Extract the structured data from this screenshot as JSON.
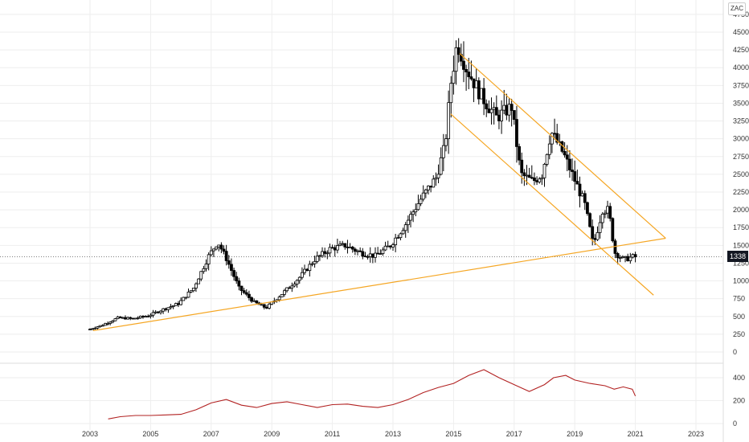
{
  "ticker": "ZAC",
  "last_price_label": "1338",
  "colors": {
    "candle_up": "#000000",
    "candle_down": "#000000",
    "trendline": "#f5a623",
    "indicator": "#b22222",
    "grid": "#eeeeee",
    "last_price_line": "#555555"
  },
  "chart_data": [
    {
      "type": "candlestick",
      "title": "",
      "x_axis": {
        "ticks": [
          "2003",
          "2005",
          "2007",
          "2009",
          "2011",
          "2013",
          "2015",
          "2017",
          "2019",
          "2021",
          "2023"
        ],
        "range": [
          2002.75,
          2023.0
        ]
      },
      "y_axis": {
        "ticks": [
          0,
          250,
          500,
          750,
          1000,
          1250,
          1500,
          1750,
          2000,
          2250,
          2500,
          2750,
          3000,
          3250,
          3500,
          3750,
          4000,
          4250,
          4500,
          4750
        ],
        "range": [
          -100,
          4800
        ],
        "side": "right"
      },
      "grid": true,
      "last_price": 1338,
      "series": [
        {
          "approx_close_path": [
            {
              "x": 2003.0,
              "y": 310
            },
            {
              "x": 2003.5,
              "y": 380
            },
            {
              "x": 2004.0,
              "y": 480
            },
            {
              "x": 2004.5,
              "y": 470
            },
            {
              "x": 2005.0,
              "y": 510
            },
            {
              "x": 2005.5,
              "y": 600
            },
            {
              "x": 2006.0,
              "y": 680
            },
            {
              "x": 2006.5,
              "y": 900
            },
            {
              "x": 2007.0,
              "y": 1350
            },
            {
              "x": 2007.3,
              "y": 1550
            },
            {
              "x": 2007.6,
              "y": 1300
            },
            {
              "x": 2008.0,
              "y": 900
            },
            {
              "x": 2008.5,
              "y": 700
            },
            {
              "x": 2008.9,
              "y": 620
            },
            {
              "x": 2009.5,
              "y": 850
            },
            {
              "x": 2010.0,
              "y": 1050
            },
            {
              "x": 2010.5,
              "y": 1300
            },
            {
              "x": 2011.0,
              "y": 1450
            },
            {
              "x": 2011.5,
              "y": 1500
            },
            {
              "x": 2012.0,
              "y": 1400
            },
            {
              "x": 2012.5,
              "y": 1350
            },
            {
              "x": 2013.0,
              "y": 1500
            },
            {
              "x": 2013.5,
              "y": 1800
            },
            {
              "x": 2014.0,
              "y": 2150
            },
            {
              "x": 2014.5,
              "y": 2450
            },
            {
              "x": 2014.8,
              "y": 2900
            },
            {
              "x": 2015.0,
              "y": 3800
            },
            {
              "x": 2015.2,
              "y": 4350
            },
            {
              "x": 2015.5,
              "y": 4000
            },
            {
              "x": 2016.0,
              "y": 3600
            },
            {
              "x": 2016.5,
              "y": 3300
            },
            {
              "x": 2017.0,
              "y": 3450
            },
            {
              "x": 2017.3,
              "y": 2500
            },
            {
              "x": 2017.7,
              "y": 2400
            },
            {
              "x": 2018.0,
              "y": 2500
            },
            {
              "x": 2018.3,
              "y": 3100
            },
            {
              "x": 2018.7,
              "y": 2800
            },
            {
              "x": 2019.0,
              "y": 2500
            },
            {
              "x": 2019.4,
              "y": 2100
            },
            {
              "x": 2019.7,
              "y": 1500
            },
            {
              "x": 2020.0,
              "y": 2000
            },
            {
              "x": 2020.2,
              "y": 2000
            },
            {
              "x": 2020.4,
              "y": 1400
            },
            {
              "x": 2020.7,
              "y": 1300
            },
            {
              "x": 2021.0,
              "y": 1338
            }
          ]
        }
      ]
    },
    {
      "type": "line",
      "title": "",
      "x_axis": {
        "ticks": [
          "2003",
          "2005",
          "2007",
          "2009",
          "2011",
          "2013",
          "2015",
          "2017",
          "2019",
          "2021",
          "2023"
        ]
      },
      "y_axis": {
        "ticks": [
          0,
          200,
          400
        ],
        "range": [
          -20,
          500
        ],
        "side": "right"
      },
      "series": [
        {
          "x": [
            2003.6,
            2004.0,
            2004.5,
            2005.0,
            2005.5,
            2006.0,
            2006.5,
            2007.0,
            2007.5,
            2008.0,
            2008.5,
            2009.0,
            2009.5,
            2010.0,
            2010.5,
            2011.0,
            2011.5,
            2012.0,
            2012.5,
            2013.0,
            2013.5,
            2014.0,
            2014.5,
            2015.0,
            2015.5,
            2016.0,
            2016.5,
            2017.0,
            2017.5,
            2018.0,
            2018.3,
            2018.7,
            2019.0,
            2019.5,
            2020.0,
            2020.3,
            2020.6,
            2020.9,
            2021.0
          ],
          "y": [
            40,
            60,
            70,
            70,
            75,
            80,
            120,
            180,
            210,
            160,
            140,
            175,
            190,
            165,
            140,
            165,
            170,
            150,
            140,
            165,
            210,
            270,
            315,
            350,
            420,
            470,
            400,
            340,
            280,
            340,
            400,
            420,
            380,
            350,
            330,
            300,
            320,
            300,
            240
          ]
        }
      ]
    }
  ]
}
